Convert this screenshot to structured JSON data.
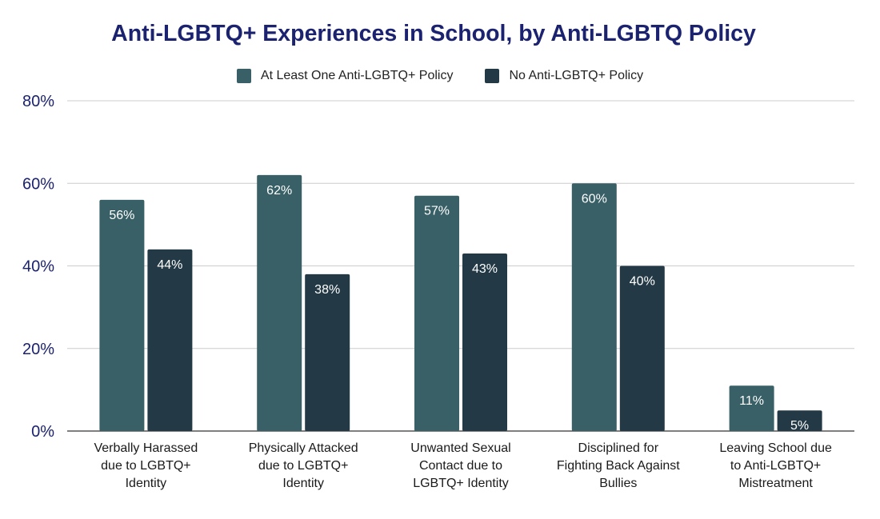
{
  "chart_data": {
    "type": "bar",
    "title": "Anti-LGBTQ+ Experiences in School, by Anti-LGBTQ Policy",
    "categories": [
      [
        "Verbally Harassed",
        "due to LGBTQ+",
        "Identity"
      ],
      [
        "Physically Attacked",
        "due to LGBTQ+",
        "Identity"
      ],
      [
        "Unwanted Sexual",
        "Contact due to",
        "LGBTQ+ Identity"
      ],
      [
        "Disciplined for",
        "Fighting Back Against",
        "Bullies"
      ],
      [
        "Leaving School due",
        "to Anti-LGBTQ+",
        "Mistreatment"
      ]
    ],
    "series": [
      {
        "name": "At Least One Anti-LGBTQ+ Policy",
        "color": "#386066",
        "values": [
          56,
          62,
          57,
          60,
          11
        ],
        "labels": [
          "56%",
          "62%",
          "57%",
          "60%",
          "11%"
        ]
      },
      {
        "name": "No Anti-LGBTQ+ Policy",
        "color": "#233a46",
        "values": [
          44,
          38,
          43,
          40,
          5
        ],
        "labels": [
          "44%",
          "38%",
          "43%",
          "40%",
          "5%"
        ]
      }
    ],
    "ylim": [
      0,
      80
    ],
    "yticks": [
      0,
      20,
      40,
      60,
      80
    ],
    "ytick_labels": [
      "0%",
      "20%",
      "40%",
      "60%",
      "80%"
    ],
    "xlabel": "",
    "ylabel": "",
    "legend_position": "top-center",
    "grid": true
  }
}
